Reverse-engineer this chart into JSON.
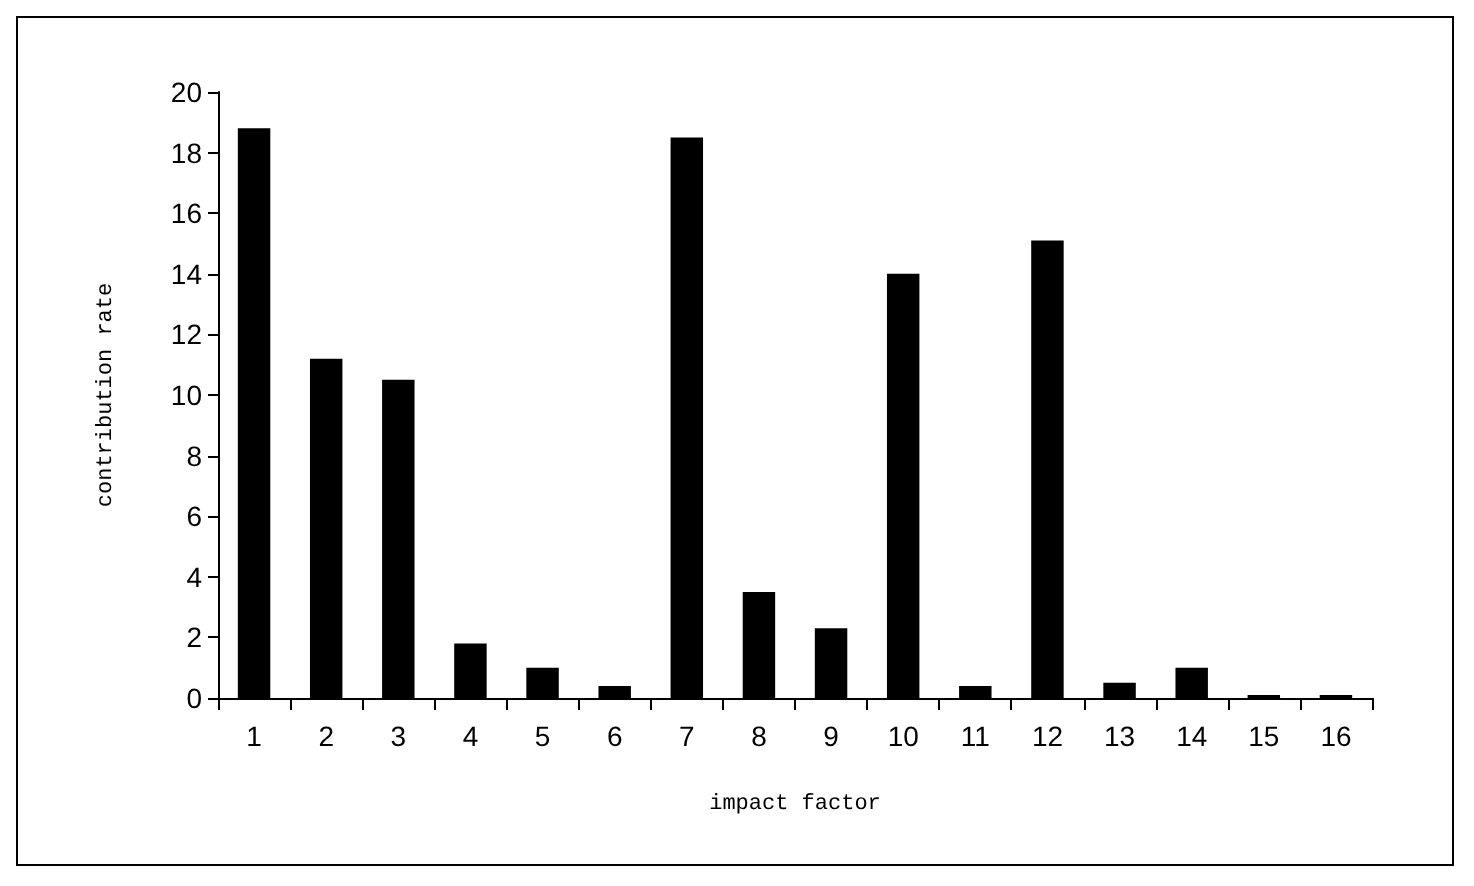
{
  "chart_data": {
    "type": "bar",
    "xlabel": "impact factor",
    "ylabel": "contribution rate",
    "categories": [
      "1",
      "2",
      "3",
      "4",
      "5",
      "6",
      "7",
      "8",
      "9",
      "10",
      "11",
      "12",
      "13",
      "14",
      "15",
      "16"
    ],
    "series": [
      {
        "color": "#000000",
        "values": [
          18.8,
          11.2,
          10.5,
          1.8,
          1.0,
          0.4,
          18.5,
          3.5,
          2.3,
          14.0,
          0.4,
          15.1,
          0.5,
          1.0,
          0.1,
          0.1
        ]
      }
    ],
    "ylim": [
      0,
      20
    ],
    "yticks": [
      0,
      2,
      4,
      6,
      8,
      10,
      12,
      14,
      16,
      18,
      20
    ],
    "grid": false
  }
}
